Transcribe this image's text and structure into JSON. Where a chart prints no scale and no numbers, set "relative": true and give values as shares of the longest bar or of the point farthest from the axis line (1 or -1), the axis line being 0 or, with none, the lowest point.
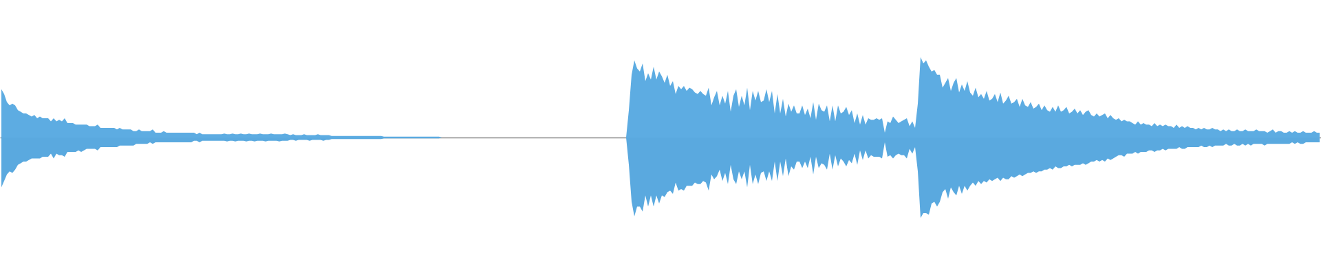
{
  "chart_data": {
    "type": "area",
    "relative": true,
    "categories": [
      null,
      null,
      null,
      null,
      null,
      null,
      null,
      null,
      null,
      null,
      null,
      null,
      null,
      null,
      null,
      null,
      null,
      null,
      null,
      null,
      null,
      null,
      null,
      null,
      null,
      null,
      null,
      null,
      null,
      null,
      null,
      null,
      null,
      null,
      null,
      null,
      null,
      null,
      null,
      null,
      null,
      null,
      null,
      null,
      null,
      null,
      null,
      null,
      null,
      null,
      null,
      null,
      null,
      null,
      null,
      null,
      null,
      null,
      null,
      null,
      null,
      null,
      null,
      null,
      null,
      null,
      null,
      null,
      null,
      null,
      null,
      null,
      null,
      null,
      null,
      null,
      null,
      null,
      null,
      null,
      null,
      null,
      null,
      null,
      null,
      null,
      null,
      null,
      null,
      null,
      null,
      null,
      null,
      null,
      null,
      null,
      null,
      null,
      null,
      null,
      null,
      null,
      null,
      null,
      null,
      null,
      null,
      null,
      null,
      null,
      null,
      null,
      null,
      null,
      null,
      null,
      null,
      null,
      null,
      null,
      null,
      null,
      null,
      null,
      null,
      null,
      null,
      null,
      null,
      null,
      null,
      null,
      null,
      null,
      null,
      null,
      null,
      null,
      null,
      null,
      null,
      null,
      null,
      null,
      null,
      null,
      null,
      null,
      null,
      null,
      null,
      null,
      null,
      null,
      null,
      null,
      null,
      null,
      null,
      null,
      null,
      null,
      null,
      null,
      null,
      null,
      null,
      null,
      null,
      null,
      null,
      null,
      null,
      null,
      null,
      null,
      null,
      null,
      null,
      null,
      null,
      null,
      null,
      null,
      null,
      null,
      null,
      null,
      null,
      null,
      null,
      null,
      null,
      null,
      null,
      null,
      null,
      null,
      null,
      null,
      null,
      null,
      null,
      null,
      null,
      null,
      null,
      null,
      null,
      null,
      null,
      null,
      null,
      null,
      null,
      null,
      null,
      null,
      null,
      null,
      null,
      null,
      null,
      null,
      null,
      null,
      null,
      null,
      null,
      null,
      null,
      null,
      null,
      null,
      null,
      null,
      null,
      null,
      null,
      null,
      null,
      null,
      null,
      null,
      null,
      null,
      null,
      null,
      null,
      null,
      null,
      null,
      null,
      null,
      null,
      null,
      null,
      null,
      null,
      null,
      null,
      null,
      null,
      null,
      null,
      null,
      null,
      null,
      null,
      null,
      null,
      null,
      null,
      null,
      null,
      null,
      null,
      null,
      null,
      null,
      null,
      null,
      null,
      null,
      null,
      null,
      null,
      null,
      null,
      null,
      null,
      null,
      null,
      null,
      null,
      null,
      null,
      null,
      null,
      null,
      null,
      null,
      null,
      null,
      null,
      null,
      null,
      null,
      null,
      null,
      null,
      null,
      null,
      null,
      null,
      null,
      null,
      null,
      null,
      null,
      null,
      null,
      null,
      null,
      null,
      null,
      null,
      null,
      null,
      null,
      null,
      null,
      null,
      null,
      null,
      null,
      null,
      null,
      null,
      null,
      null,
      null,
      null,
      null,
      null,
      null,
      null,
      null,
      null,
      null,
      null,
      null,
      null,
      null,
      null,
      null,
      null,
      null,
      null,
      null,
      null,
      null,
      null,
      null,
      null,
      null,
      null,
      null,
      null,
      null,
      null,
      null,
      null,
      null,
      null,
      null,
      null,
      null,
      null,
      null,
      null,
      null,
      null,
      null,
      null,
      null,
      null,
      null,
      null,
      null,
      null,
      null,
      null,
      null,
      null,
      null,
      null,
      null,
      null,
      null,
      null,
      null,
      null,
      null,
      null,
      null,
      null,
      null,
      null,
      null,
      null,
      null,
      null,
      null,
      null,
      null,
      null,
      null,
      null,
      null,
      null,
      null,
      null,
      null,
      null,
      null,
      null,
      null,
      null,
      null,
      null,
      null,
      null,
      null,
      null,
      null,
      null,
      null,
      null,
      null,
      null,
      null,
      null,
      null,
      null,
      null,
      null,
      null,
      null,
      null,
      null,
      null,
      null,
      null,
      null,
      null,
      null,
      null,
      null,
      null,
      null,
      null,
      null,
      null,
      null,
      null,
      null,
      null,
      null,
      null,
      null,
      null,
      null,
      null,
      null,
      null,
      null,
      null,
      null,
      null
    ],
    "series": [
      {
        "color": "#5dace2",
        "values": [
          0.6,
          0.54,
          0.44,
          0.4,
          0.42,
          0.4,
          0.34,
          0.32,
          0.3,
          0.3,
          0.28,
          0.26,
          0.28,
          0.24,
          0.26,
          0.24,
          0.24,
          0.24,
          0.2,
          0.24,
          0.2,
          0.22,
          0.2,
          0.24,
          0.18,
          0.18,
          0.18,
          0.16,
          0.16,
          0.16,
          0.16,
          0.16,
          0.14,
          0.14,
          0.14,
          0.16,
          0.12,
          0.12,
          0.12,
          0.12,
          0.12,
          0.12,
          0.1,
          0.12,
          0.1,
          0.1,
          0.1,
          0.1,
          0.08,
          0.08,
          0.1,
          0.08,
          0.08,
          0.08,
          0.08,
          0.1,
          0.06,
          0.06,
          0.06,
          0.08,
          0.06,
          0.06,
          0.06,
          0.06,
          0.06,
          0.06,
          0.06,
          0.06,
          0.06,
          0.06,
          0.06,
          0.04,
          0.06,
          0.04,
          0.04,
          0.04,
          0.04,
          0.04,
          0.04,
          0.04,
          0.04,
          0.05,
          0.04,
          0.04,
          0.05,
          0.04,
          0.04,
          0.05,
          0.04,
          0.04,
          0.05,
          0.04,
          0.04,
          0.04,
          0.05,
          0.04,
          0.04,
          0.04,
          0.05,
          0.04,
          0.04,
          0.04,
          0.04,
          0.05,
          0.04,
          0.03,
          0.04,
          0.03,
          0.03,
          0.03,
          0.04,
          0.03,
          0.03,
          0.03,
          0.03,
          0.04,
          0.03,
          0.03,
          0.03,
          0.03,
          0.02,
          0.02,
          0.02,
          0.02,
          0.02,
          0.02,
          0.02,
          0.02,
          0.02,
          0.02,
          0.02,
          0.02,
          0.02,
          0.02,
          0.02,
          0.02,
          0.02,
          0.02,
          0.02,
          0.01,
          0.01,
          0.01,
          0.01,
          0.01,
          0.01,
          0.01,
          0.01,
          0.01,
          0.01,
          0.01,
          0.01,
          0.01,
          0.01,
          0.01,
          0.01,
          0.01,
          0.01,
          0.01,
          0.01,
          0.01,
          0,
          0,
          0,
          0,
          0,
          0,
          0,
          0,
          0,
          0,
          0,
          0,
          0,
          0,
          0,
          0,
          0,
          0,
          0,
          0,
          0,
          0,
          0,
          0,
          0,
          0,
          0,
          0,
          0,
          0,
          0,
          0,
          0,
          0,
          0,
          0,
          0,
          0,
          0,
          0,
          0,
          0,
          0,
          0,
          0,
          0,
          0,
          0,
          0,
          0,
          0,
          0,
          0,
          0,
          0,
          0,
          0,
          0,
          0,
          0,
          0,
          0,
          0,
          0,
          0,
          0,
          0,
          0,
          0.34,
          0.78,
          0.96,
          0.86,
          0.82,
          0.92,
          0.7,
          0.8,
          0.72,
          0.88,
          0.72,
          0.82,
          0.76,
          0.68,
          0.78,
          0.64,
          0.7,
          0.54,
          0.64,
          0.6,
          0.64,
          0.58,
          0.62,
          0.6,
          0.56,
          0.54,
          0.58,
          0.54,
          0.52,
          0.62,
          0.4,
          0.5,
          0.58,
          0.4,
          0.52,
          0.42,
          0.58,
          0.32,
          0.52,
          0.6,
          0.38,
          0.52,
          0.4,
          0.62,
          0.34,
          0.58,
          0.46,
          0.58,
          0.44,
          0.46,
          0.6,
          0.44,
          0.58,
          0.3,
          0.54,
          0.3,
          0.48,
          0.26,
          0.42,
          0.32,
          0.4,
          0.3,
          0.3,
          0.4,
          0.28,
          0.36,
          0.24,
          0.44,
          0.22,
          0.42,
          0.34,
          0.32,
          0.4,
          0.2,
          0.4,
          0.2,
          0.4,
          0.3,
          0.32,
          0.38,
          0.28,
          0.34,
          0.18,
          0.3,
          0.16,
          0.28,
          0.16,
          0.24,
          0.22,
          0.22,
          0.24,
          0.22,
          0.24,
          0.06,
          0.2,
          0.18,
          0.26,
          0.22,
          0.18,
          0.2,
          0.22,
          0.24,
          0.14,
          0.2,
          0.12,
          0.42,
          1,
          0.92,
          0.96,
          0.88,
          0.82,
          0.84,
          0.78,
          0.78,
          0.62,
          0.68,
          0.74,
          0.58,
          0.68,
          0.74,
          0.56,
          0.66,
          0.58,
          0.7,
          0.56,
          0.52,
          0.62,
          0.5,
          0.54,
          0.48,
          0.58,
          0.46,
          0.48,
          0.54,
          0.44,
          0.56,
          0.42,
          0.46,
          0.52,
          0.42,
          0.44,
          0.48,
          0.38,
          0.48,
          0.4,
          0.38,
          0.44,
          0.36,
          0.38,
          0.42,
          0.34,
          0.4,
          0.34,
          0.32,
          0.38,
          0.32,
          0.4,
          0.32,
          0.34,
          0.38,
          0.3,
          0.32,
          0.36,
          0.3,
          0.34,
          0.28,
          0.32,
          0.34,
          0.28,
          0.26,
          0.3,
          0.26,
          0.28,
          0.3,
          0.24,
          0.28,
          0.24,
          0.22,
          0.24,
          0.2,
          0.22,
          0.2,
          0.2,
          0.18,
          0.16,
          0.2,
          0.16,
          0.18,
          0.16,
          0.16,
          0.14,
          0.18,
          0.14,
          0.16,
          0.14,
          0.16,
          0.14,
          0.14,
          0.12,
          0.16,
          0.12,
          0.14,
          0.12,
          0.14,
          0.12,
          0.12,
          0.1,
          0.12,
          0.1,
          0.12,
          0.1,
          0.1,
          0.12,
          0.1,
          0.1,
          0.08,
          0.1,
          0.08,
          0.1,
          0.08,
          0.08,
          0.1,
          0.08,
          0.08,
          0.1,
          0.08,
          0.08,
          0.08,
          0.1,
          0.08,
          0.08,
          0.08,
          0.06,
          0.08,
          0.1,
          0.06,
          0.08,
          0.08,
          0.06,
          0.06,
          0.08,
          0.06,
          0.08,
          0.06,
          0.06,
          0.08,
          0.06,
          0.06,
          0.06,
          0.08,
          0.06,
          0.06
        ]
      },
      {
        "color": "#5aa9df",
        "values": [
          -0.62,
          -0.54,
          -0.46,
          -0.42,
          -0.44,
          -0.4,
          -0.34,
          -0.32,
          -0.3,
          -0.3,
          -0.28,
          -0.26,
          -0.26,
          -0.26,
          -0.26,
          -0.24,
          -0.24,
          -0.24,
          -0.2,
          -0.26,
          -0.2,
          -0.22,
          -0.22,
          -0.24,
          -0.18,
          -0.18,
          -0.18,
          -0.18,
          -0.16,
          -0.18,
          -0.16,
          -0.14,
          -0.14,
          -0.14,
          -0.14,
          -0.16,
          -0.12,
          -0.12,
          -0.12,
          -0.12,
          -0.12,
          -0.12,
          -0.12,
          -0.1,
          -0.1,
          -0.1,
          -0.1,
          -0.1,
          -0.1,
          -0.08,
          -0.08,
          -0.08,
          -0.08,
          -0.08,
          -0.06,
          -0.08,
          -0.06,
          -0.06,
          -0.06,
          -0.06,
          -0.06,
          -0.06,
          -0.06,
          -0.06,
          -0.06,
          -0.06,
          -0.06,
          -0.06,
          -0.06,
          -0.06,
          -0.04,
          -0.04,
          -0.06,
          -0.04,
          -0.04,
          -0.04,
          -0.04,
          -0.04,
          -0.04,
          -0.04,
          -0.04,
          -0.04,
          -0.05,
          -0.04,
          -0.04,
          -0.05,
          -0.04,
          -0.04,
          -0.04,
          -0.05,
          -0.04,
          -0.04,
          -0.05,
          -0.04,
          -0.04,
          -0.04,
          -0.05,
          -0.04,
          -0.04,
          -0.04,
          -0.04,
          -0.05,
          -0.04,
          -0.04,
          -0.04,
          -0.03,
          -0.03,
          -0.04,
          -0.03,
          -0.03,
          -0.03,
          -0.03,
          -0.04,
          -0.03,
          -0.03,
          -0.03,
          -0.03,
          -0.04,
          -0.03,
          -0.03,
          -0.02,
          -0.02,
          -0.02,
          -0.02,
          -0.02,
          -0.02,
          -0.02,
          -0.02,
          -0.02,
          -0.02,
          -0.02,
          -0.02,
          -0.02,
          -0.02,
          -0.02,
          -0.02,
          -0.02,
          -0.02,
          -0.02,
          -0.01,
          -0.01,
          -0.01,
          -0.01,
          -0.01,
          -0.01,
          -0.01,
          -0.01,
          -0.01,
          -0.01,
          -0.01,
          -0.01,
          -0.01,
          -0.01,
          -0.01,
          -0.01,
          -0.01,
          -0.01,
          -0.01,
          -0.01,
          -0.01,
          0,
          0,
          0,
          0,
          0,
          0,
          0,
          0,
          0,
          0,
          0,
          0,
          0,
          0,
          0,
          0,
          0,
          0,
          0,
          0,
          0,
          0,
          0,
          0,
          0,
          0,
          0,
          0,
          0,
          0,
          0,
          0,
          0,
          0,
          0,
          0,
          0,
          0,
          0,
          0,
          0,
          0,
          0,
          0,
          0,
          0,
          0,
          0,
          0,
          0,
          0,
          0,
          0,
          0,
          0,
          0,
          0,
          0,
          0,
          0,
          0,
          0,
          0,
          0,
          0,
          0,
          0,
          0,
          -0.34,
          -0.8,
          -0.98,
          -0.86,
          -0.86,
          -0.92,
          -0.72,
          -0.86,
          -0.72,
          -0.86,
          -0.72,
          -0.82,
          -0.72,
          -0.74,
          -0.68,
          -0.66,
          -0.7,
          -0.56,
          -0.66,
          -0.64,
          -0.66,
          -0.6,
          -0.6,
          -0.6,
          -0.56,
          -0.58,
          -0.58,
          -0.54,
          -0.56,
          -0.66,
          -0.46,
          -0.52,
          -0.48,
          -0.4,
          -0.54,
          -0.44,
          -0.58,
          -0.34,
          -0.52,
          -0.58,
          -0.42,
          -0.52,
          -0.42,
          -0.62,
          -0.34,
          -0.58,
          -0.46,
          -0.58,
          -0.44,
          -0.42,
          -0.54,
          -0.42,
          -0.54,
          -0.3,
          -0.54,
          -0.3,
          -0.48,
          -0.26,
          -0.48,
          -0.36,
          -0.4,
          -0.3,
          -0.3,
          -0.38,
          -0.3,
          -0.38,
          -0.24,
          -0.46,
          -0.24,
          -0.38,
          -0.32,
          -0.34,
          -0.4,
          -0.2,
          -0.4,
          -0.22,
          -0.36,
          -0.26,
          -0.3,
          -0.36,
          -0.28,
          -0.32,
          -0.2,
          -0.34,
          -0.16,
          -0.28,
          -0.16,
          -0.26,
          -0.22,
          -0.24,
          -0.24,
          -0.24,
          -0.26,
          -0.06,
          -0.24,
          -0.22,
          -0.26,
          -0.22,
          -0.2,
          -0.22,
          -0.22,
          -0.26,
          -0.14,
          -0.2,
          -0.12,
          -0.42,
          -1,
          -0.94,
          -0.94,
          -0.96,
          -0.82,
          -0.8,
          -0.86,
          -0.8,
          -0.68,
          -0.64,
          -0.76,
          -0.62,
          -0.68,
          -0.72,
          -0.6,
          -0.7,
          -0.6,
          -0.66,
          -0.6,
          -0.56,
          -0.6,
          -0.54,
          -0.58,
          -0.54,
          -0.56,
          -0.52,
          -0.54,
          -0.52,
          -0.5,
          -0.54,
          -0.5,
          -0.52,
          -0.52,
          -0.48,
          -0.5,
          -0.48,
          -0.46,
          -0.48,
          -0.46,
          -0.44,
          -0.44,
          -0.42,
          -0.44,
          -0.42,
          -0.42,
          -0.4,
          -0.4,
          -0.38,
          -0.4,
          -0.36,
          -0.38,
          -0.38,
          -0.36,
          -0.36,
          -0.34,
          -0.36,
          -0.34,
          -0.34,
          -0.34,
          -0.32,
          -0.34,
          -0.32,
          -0.3,
          -0.3,
          -0.28,
          -0.3,
          -0.28,
          -0.3,
          -0.26,
          -0.28,
          -0.26,
          -0.24,
          -0.22,
          -0.22,
          -0.24,
          -0.2,
          -0.2,
          -0.2,
          -0.18,
          -0.2,
          -0.18,
          -0.18,
          -0.18,
          -0.16,
          -0.16,
          -0.18,
          -0.16,
          -0.16,
          -0.14,
          -0.16,
          -0.14,
          -0.14,
          -0.14,
          -0.14,
          -0.12,
          -0.14,
          -0.14,
          -0.12,
          -0.12,
          -0.12,
          -0.12,
          -0.12,
          -0.1,
          -0.12,
          -0.12,
          -0.1,
          -0.12,
          -0.1,
          -0.1,
          -0.1,
          -0.1,
          -0.08,
          -0.1,
          -0.1,
          -0.08,
          -0.1,
          -0.1,
          -0.08,
          -0.1,
          -0.08,
          -0.1,
          -0.08,
          -0.08,
          -0.08,
          -0.08,
          -0.1,
          -0.08,
          -0.08,
          -0.08,
          -0.08,
          -0.08,
          -0.08,
          -0.08,
          -0.08,
          -0.08,
          -0.06,
          -0.08,
          -0.06,
          -0.08,
          -0.08,
          -0.06,
          -0.06,
          -0.06,
          -0.06,
          -0.06,
          -0.06
        ]
      }
    ]
  }
}
